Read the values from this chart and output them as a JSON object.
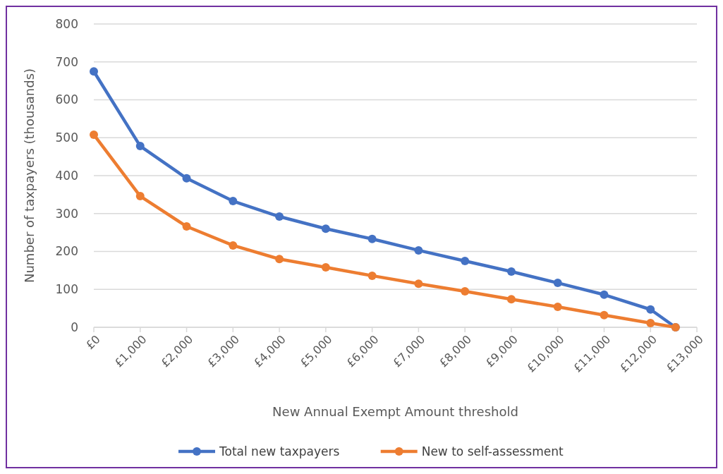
{
  "chart_data": {
    "type": "line",
    "xlabel": "New Annual Exempt Amount threshold",
    "ylabel": "Number of taxpayers (thousands)",
    "x": [
      0,
      1000,
      2000,
      3000,
      4000,
      5000,
      6000,
      7000,
      8000,
      9000,
      10000,
      11000,
      12000,
      12540
    ],
    "series": [
      {
        "name": "Total new taxpayers",
        "color": "#4472c4",
        "values": [
          675,
          478,
          393,
          333,
          292,
          260,
          233,
          203,
          175,
          147,
          117,
          86,
          47,
          0
        ]
      },
      {
        "name": "New to self-assessment",
        "color": "#ed7d31",
        "values": [
          508,
          346,
          266,
          216,
          180,
          158,
          136,
          115,
          95,
          74,
          54,
          32,
          11,
          0
        ]
      }
    ],
    "xlim": [
      0,
      13000
    ],
    "xticks": [
      {
        "value": 0,
        "label": "£0"
      },
      {
        "value": 1000,
        "label": "£1,000"
      },
      {
        "value": 2000,
        "label": "£2,000"
      },
      {
        "value": 3000,
        "label": "£3,000"
      },
      {
        "value": 4000,
        "label": "£4,000"
      },
      {
        "value": 5000,
        "label": "£5,000"
      },
      {
        "value": 6000,
        "label": "£6,000"
      },
      {
        "value": 7000,
        "label": "£7,000"
      },
      {
        "value": 8000,
        "label": "£8,000"
      },
      {
        "value": 9000,
        "label": "£9,000"
      },
      {
        "value": 10000,
        "label": "£10,000"
      },
      {
        "value": 11000,
        "label": "£11,000"
      },
      {
        "value": 12000,
        "label": "£12,000"
      },
      {
        "value": 13000,
        "label": "£13,000"
      }
    ],
    "ylim": [
      0,
      800
    ],
    "yticks": [
      0,
      100,
      200,
      300,
      400,
      500,
      600,
      700,
      800
    ],
    "grid": "y",
    "legend": "bottom",
    "marker": "circle",
    "line_style": "solid"
  }
}
